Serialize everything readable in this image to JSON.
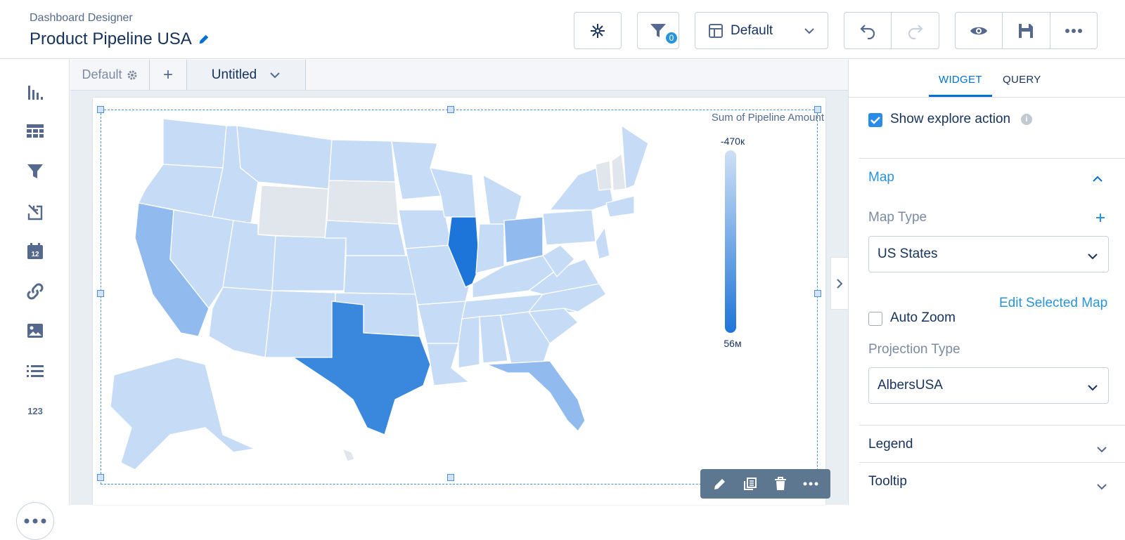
{
  "header": {
    "app_label": "Dashboard Designer",
    "title": "Product Pipeline USA",
    "filter_count": "0",
    "layout_select": "Default",
    "icons": [
      "pencil-icon",
      "connect-icon",
      "filter-icon",
      "layout-icon",
      "undo-icon",
      "redo-icon",
      "preview-icon",
      "save-icon",
      "more-icon"
    ]
  },
  "rail": {
    "items": [
      "chart-icon",
      "table-icon",
      "filter-icon",
      "import-icon",
      "date-icon",
      "link-icon",
      "image-icon",
      "list-icon",
      "number-icon"
    ],
    "number_label": "123"
  },
  "pages": {
    "default_label": "Default",
    "add_label": "+",
    "current_label": "Untitled"
  },
  "widget": {
    "legend_title": "Sum of Pipeline Amount",
    "legend_max": "-470к",
    "legend_min": "56м",
    "colors": {
      "low": "#c6dbf5",
      "mid": "#91bbee",
      "high": "#3a87de",
      "max": "#1e75d9",
      "none": "#e1e6ec"
    }
  },
  "panel": {
    "tab_widget": "WIDGET",
    "tab_query": "QUERY",
    "show_explore_label": "Show explore action",
    "map_section": "Map",
    "map_type_label": "Map Type",
    "map_type_value": "US States",
    "edit_selected_map": "Edit Selected Map",
    "auto_zoom_label": "Auto Zoom",
    "projection_label": "Projection Type",
    "projection_value": "AlbersUSA",
    "legend_section": "Legend",
    "tooltip_section": "Tooltip"
  }
}
